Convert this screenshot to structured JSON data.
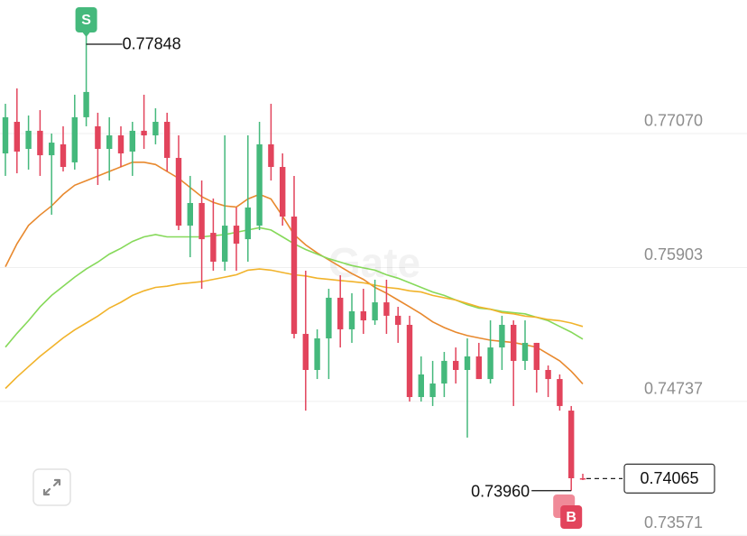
{
  "chart_data": {
    "type": "candlestick",
    "open": [
      0.76897,
      0.77172,
      0.76936,
      0.77094,
      0.76881,
      0.76976,
      0.76819,
      0.77212,
      0.77133,
      0.76936,
      0.77054,
      0.76913,
      0.77094,
      0.77054,
      0.77172,
      0.76858,
      0.76268,
      0.76465,
      0.76205,
      0.75954,
      0.76268,
      0.7615,
      0.76268,
      0.76976,
      0.76779,
      0.76347,
      0.75325,
      0.75011,
      0.75286,
      0.7564,
      0.75365,
      0.75522,
      0.75443,
      0.756,
      0.75483,
      0.75404,
      0.74775,
      0.74775,
      0.74893,
      0.7509,
      0.75011,
      0.75129,
      0.74932,
      0.75207,
      0.75404,
      0.7509,
      0.75247,
      0.75011,
      0.74932,
      0.74657,
      0.74068
    ],
    "high": [
      0.77329,
      0.77463,
      0.77227,
      0.77274,
      0.7707,
      0.77133,
      0.77408,
      0.77848,
      0.77251,
      0.77212,
      0.77133,
      0.77172,
      0.77408,
      0.7729,
      0.77251,
      0.77054,
      0.76701,
      0.76661,
      0.76504,
      0.77054,
      0.76426,
      0.77054,
      0.77172,
      0.77329,
      0.76897,
      0.76701,
      0.75875,
      0.75365,
      0.75718,
      0.75836,
      0.75679,
      0.75718,
      0.75797,
      0.75797,
      0.75561,
      0.75483,
      0.75129,
      0.7509,
      0.75168,
      0.75207,
      0.75286,
      0.75247,
      0.75443,
      0.75483,
      0.75443,
      0.75443,
      0.75247,
      0.7505,
      0.74972,
      0.74697,
      0.74107
    ],
    "low": [
      0.76701,
      0.76724,
      0.76756,
      0.76701,
      0.76363,
      0.7674,
      0.76756,
      0.77133,
      0.76622,
      0.76661,
      0.76779,
      0.76701,
      0.76936,
      0.76976,
      0.7674,
      0.76229,
      0.75993,
      0.75718,
      0.75875,
      0.75875,
      0.75875,
      0.75954,
      0.76229,
      0.76661,
      0.76268,
      0.75286,
      0.74657,
      0.74932,
      0.74932,
      0.75207,
      0.75247,
      0.75325,
      0.75404,
      0.75325,
      0.75247,
      0.74736,
      0.74736,
      0.74697,
      0.74775,
      0.74893,
      0.74422,
      0.74932,
      0.74893,
      0.75011,
      0.74697,
      0.75011,
      0.74814,
      0.74775,
      0.74657,
      0.7396,
      0.74052
    ],
    "close": [
      0.77212,
      0.76913,
      0.77094,
      0.76881,
      0.76991,
      0.76779,
      0.77212,
      0.77432,
      0.76936,
      0.77054,
      0.76897,
      0.77094,
      0.77054,
      0.77172,
      0.76858,
      0.76268,
      0.76465,
      0.7615,
      0.75954,
      0.76268,
      0.76111,
      0.76426,
      0.76976,
      0.76779,
      0.76347,
      0.75325,
      0.75011,
      0.75286,
      0.7564,
      0.75365,
      0.75522,
      0.75443,
      0.756,
      0.75483,
      0.75404,
      0.74775,
      0.74972,
      0.74893,
      0.7509,
      0.75011,
      0.75129,
      0.74932,
      0.75207,
      0.75404,
      0.7509,
      0.75247,
      0.75011,
      0.74932,
      0.74697,
      0.74068,
      0.74065
    ],
    "up_color": "#45b97c",
    "down_color": "#e2445c",
    "series": [
      {
        "color": "#e8892e",
        "values": [
          0.7591,
          0.7611,
          0.7627,
          0.7636,
          0.7644,
          0.7654,
          0.7662,
          0.7666,
          0.767,
          0.7674,
          0.7678,
          0.7682,
          0.7682,
          0.768,
          0.7674,
          0.7668,
          0.766,
          0.7652,
          0.7647,
          0.7644,
          0.7643,
          0.765,
          0.7654,
          0.765,
          0.7635,
          0.7619,
          0.761,
          0.7603,
          0.7597,
          0.7591,
          0.7585,
          0.758,
          0.7573,
          0.7568,
          0.7562,
          0.7556,
          0.755,
          0.7543,
          0.7538,
          0.7534,
          0.7531,
          0.7529,
          0.7527,
          0.7526,
          0.7525,
          0.7523,
          0.7521,
          0.7515,
          0.7509,
          0.75,
          0.7489
        ]
      },
      {
        "color": "#86d95a",
        "values": [
          0.7521,
          0.7533,
          0.7544,
          0.7556,
          0.7566,
          0.7574,
          0.7582,
          0.7589,
          0.7595,
          0.7602,
          0.7607,
          0.7613,
          0.7617,
          0.7619,
          0.7617,
          0.7617,
          0.7617,
          0.7617,
          0.7618,
          0.7619,
          0.7621,
          0.7623,
          0.7625,
          0.7623,
          0.7617,
          0.7611,
          0.7606,
          0.7602,
          0.7598,
          0.7595,
          0.7592,
          0.759,
          0.7588,
          0.7584,
          0.7581,
          0.7577,
          0.7573,
          0.7569,
          0.7566,
          0.7562,
          0.7558,
          0.7555,
          0.7554,
          0.7552,
          0.7551,
          0.755,
          0.7547,
          0.7544,
          0.7539,
          0.7534,
          0.7528
        ]
      },
      {
        "color": "#f1b32b",
        "values": [
          0.7485,
          0.7495,
          0.7504,
          0.7513,
          0.7521,
          0.7529,
          0.7536,
          0.7542,
          0.7548,
          0.7555,
          0.756,
          0.7566,
          0.757,
          0.7573,
          0.7574,
          0.7576,
          0.7577,
          0.7578,
          0.758,
          0.7582,
          0.7584,
          0.7588,
          0.7589,
          0.7588,
          0.7586,
          0.7584,
          0.7583,
          0.7581,
          0.758,
          0.7579,
          0.7578,
          0.7577,
          0.7575,
          0.7573,
          0.7572,
          0.757,
          0.7569,
          0.7566,
          0.7564,
          0.7562,
          0.7559,
          0.7556,
          0.7554,
          0.7551,
          0.755,
          0.7548,
          0.7547,
          0.7545,
          0.7544,
          0.7542,
          0.7539
        ]
      }
    ],
    "ylim": [
      0.73565,
      0.78233
    ],
    "yticks": [
      {
        "value": 0.7707,
        "label": "0.77070"
      },
      0.75903,
      0.74737,
      0.73571
    ],
    "grid": true,
    "watermark": "Gate",
    "annotations": {
      "high_marker": "S",
      "high_value": 0.77848,
      "low_marker": "B",
      "low_value": {
        "value": 0.7396,
        "label": "0.73960"
      },
      "last_value": 0.74065
    }
  }
}
